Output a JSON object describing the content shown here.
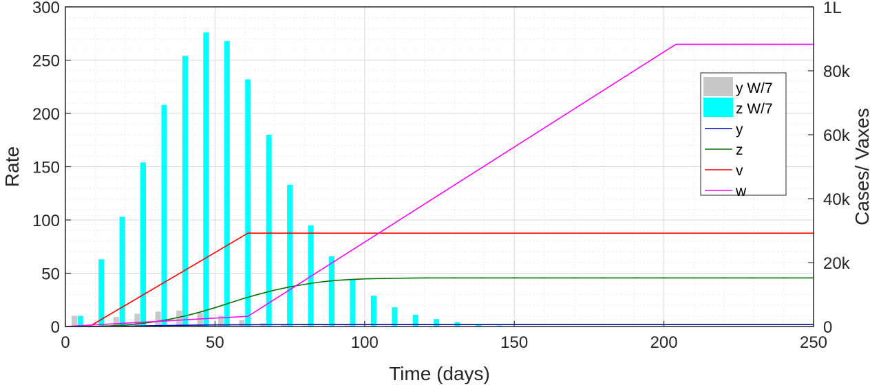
{
  "chart_data": {
    "type": "bar+line",
    "xlabel": "Time (days)",
    "ylabel_left": "Rate",
    "ylabel_right": "Cases/ Vaxes",
    "xlim": [
      0,
      250
    ],
    "ylim_left": [
      0,
      300
    ],
    "ylim_right": [
      0,
      100000
    ],
    "x_ticks": [
      "0",
      "50",
      "100",
      "150",
      "200",
      "250"
    ],
    "y_left_ticks": [
      "0",
      "50",
      "100",
      "150",
      "200",
      "250",
      "300"
    ],
    "y_right_ticks": [
      "0",
      "20k",
      "40k",
      "60k",
      "80k",
      "1L"
    ],
    "grid": "on (major and minor)",
    "legend_position": "right",
    "legend": [
      "y W/7",
      "z W/7",
      "y",
      "z",
      "v",
      "w"
    ],
    "bar_series": [
      {
        "name": "y W/7",
        "color": "#c8c8c8",
        "x": [
          3,
          17,
          24,
          31,
          38,
          45,
          52,
          59,
          66,
          73,
          80,
          87,
          94,
          101,
          108
        ],
        "values": [
          10,
          9,
          12,
          14,
          15,
          13,
          10,
          6,
          3,
          2,
          1,
          1,
          1,
          0.5,
          0.5
        ]
      },
      {
        "name": "z W/7",
        "color": "#00ffff",
        "x": [
          5,
          12,
          19,
          26,
          33,
          40,
          47,
          54,
          61,
          68,
          75,
          82,
          89,
          96,
          103,
          110,
          117,
          124,
          131,
          138,
          145
        ],
        "values": [
          10,
          63,
          103,
          154,
          208,
          254,
          276,
          268,
          232,
          180,
          133,
          95,
          66,
          44,
          29,
          18,
          11,
          7,
          4,
          2,
          1
        ]
      }
    ],
    "line_series": [
      {
        "name": "y",
        "color": "#0000b0",
        "x": [
          0,
          10,
          20,
          30,
          40,
          50,
          60,
          80,
          100,
          250
        ],
        "values": [
          0,
          0,
          100,
          250,
          400,
          500,
          550,
          600,
          600,
          600
        ]
      },
      {
        "name": "z",
        "color": "#007000",
        "x": [
          0,
          8,
          15,
          20,
          25,
          30,
          35,
          40,
          45,
          50,
          55,
          60,
          65,
          70,
          75,
          80,
          85,
          90,
          95,
          100,
          110,
          120,
          140,
          160,
          200,
          250
        ],
        "values": [
          0,
          0,
          200,
          450,
          900,
          1500,
          2300,
          3300,
          4500,
          5900,
          7400,
          8900,
          10200,
          11400,
          12400,
          13200,
          13900,
          14400,
          14700,
          14900,
          15100,
          15200,
          15200,
          15200,
          15200,
          15200
        ]
      },
      {
        "name": "v",
        "color": "#ff0000",
        "x": [
          8,
          61,
          250
        ],
        "values": [
          0,
          29200,
          29200
        ]
      },
      {
        "name": "w",
        "color": "#ff00ff",
        "x": [
          0,
          61,
          204,
          250
        ],
        "values": [
          0,
          3200,
          88300,
          88300
        ]
      }
    ]
  }
}
